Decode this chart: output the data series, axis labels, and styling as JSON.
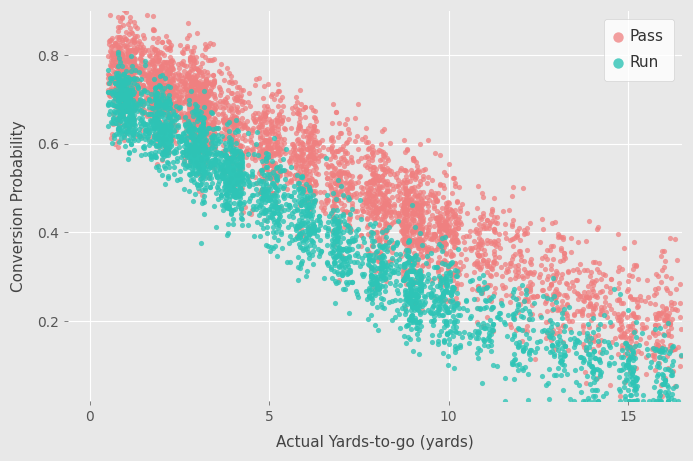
{
  "title": "",
  "xlabel": "Actual Yards-to-go (yards)",
  "ylabel": "Conversion Probability",
  "pass_color": "#F08080",
  "run_color": "#2EC4B6",
  "background_color": "#E8E8E8",
  "grid_color": "#FFFFFF",
  "xlim": [
    -0.6,
    16.5
  ],
  "ylim": [
    0.02,
    0.9
  ],
  "yticks": [
    0.2,
    0.4,
    0.6,
    0.8
  ],
  "xticks": [
    0,
    5,
    10,
    15
  ],
  "legend_labels": [
    "Pass",
    "Run"
  ],
  "point_size": 14,
  "alpha_pass": 0.75,
  "alpha_run": 0.8,
  "n_pass": 4000,
  "n_run": 3000,
  "seed": 7
}
